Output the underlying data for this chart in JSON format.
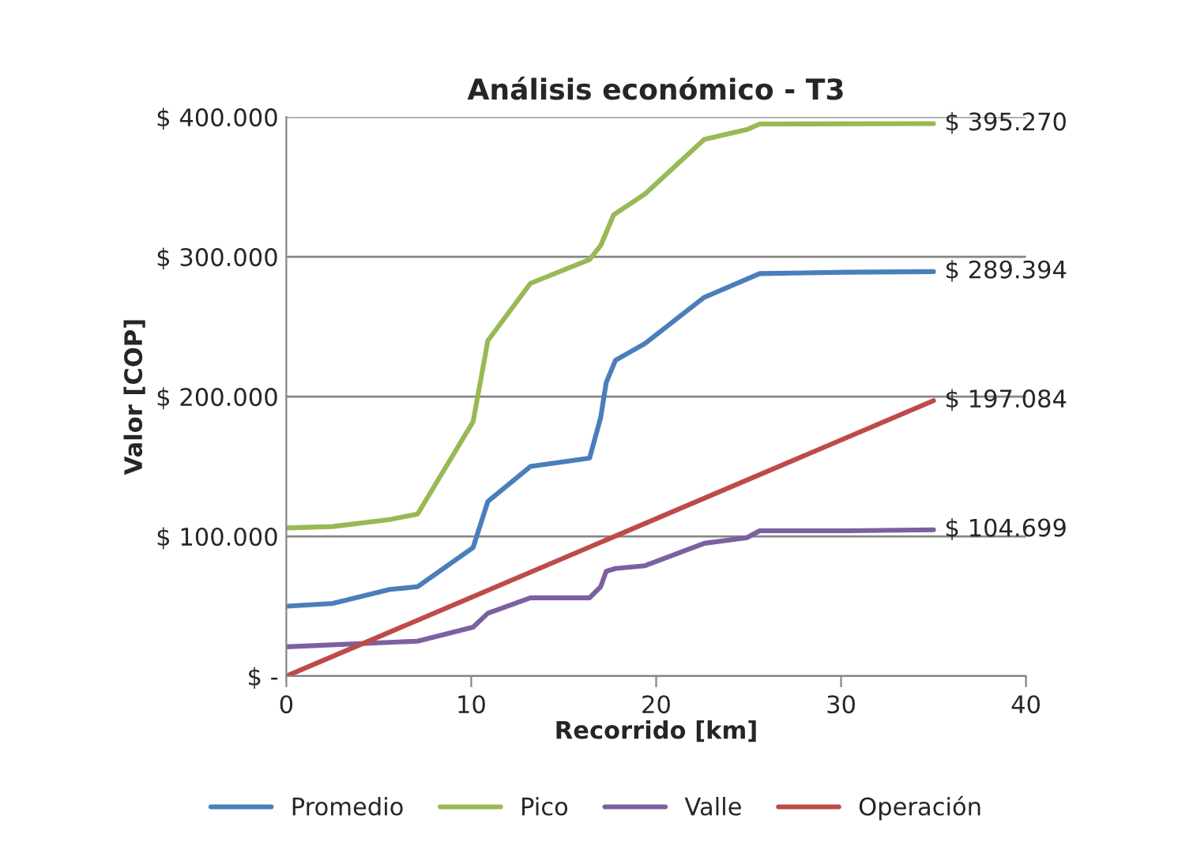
{
  "chart_data": {
    "type": "line",
    "title": "Análisis económico - T3",
    "xlabel": "Recorrido [km]",
    "ylabel": "Valor [COP]",
    "xlim": [
      0,
      40
    ],
    "xticks": [
      0,
      10,
      20,
      30,
      40
    ],
    "ylim": [
      0,
      400000
    ],
    "yticks": [
      {
        "value": 0,
        "label": "$ -"
      },
      {
        "value": 100000,
        "label": "$ 100.000"
      },
      {
        "value": 200000,
        "label": "$ 200.000"
      },
      {
        "value": 300000,
        "label": "$ 300.000"
      },
      {
        "value": 400000,
        "label": "$ 400.000"
      }
    ],
    "grid": "y",
    "legend": "bottom",
    "marker": "none",
    "line_style": "solid",
    "series": [
      {
        "name": "Promedio",
        "color": "#4a7ebb",
        "x": [
          0,
          2.5,
          5.6,
          7.1,
          10.1,
          10.9,
          13.2,
          16.4,
          17.0,
          17.3,
          17.8,
          19.4,
          22.6,
          25.6,
          30.3,
          35
        ],
        "values": [
          50000,
          52000,
          62000,
          64000,
          92000,
          125000,
          150000,
          156000,
          185000,
          210000,
          226000,
          238000,
          271000,
          288000,
          289000,
          289394
        ],
        "value_labels": [
          null,
          null,
          null,
          null,
          null,
          null,
          null,
          null,
          null,
          null,
          null,
          null,
          null,
          null,
          null,
          "$ 289.394"
        ]
      },
      {
        "name": "Pico",
        "color": "#98b954",
        "x": [
          0,
          2.5,
          5.6,
          7.1,
          10.1,
          10.9,
          13.2,
          16.4,
          17.0,
          17.7,
          19.4,
          22.6,
          24.9,
          25.6,
          35
        ],
        "values": [
          106000,
          107000,
          112000,
          116000,
          182000,
          240000,
          281000,
          298000,
          308000,
          330000,
          345000,
          384000,
          391000,
          395000,
          395270
        ],
        "value_labels": [
          null,
          null,
          null,
          null,
          null,
          null,
          null,
          null,
          null,
          null,
          null,
          null,
          null,
          null,
          "$ 395.270"
        ]
      },
      {
        "name": "Valle",
        "color": "#7d60a0",
        "x": [
          0,
          7.1,
          10.1,
          10.9,
          13.2,
          16.4,
          17.0,
          17.3,
          17.8,
          19.4,
          22.6,
          24.9,
          25.6,
          30.3,
          35
        ],
        "values": [
          21000,
          25000,
          35000,
          45000,
          56000,
          56000,
          64000,
          75000,
          77000,
          79000,
          95000,
          99000,
          104000,
          104000,
          104699
        ],
        "value_labels": [
          null,
          null,
          null,
          null,
          null,
          null,
          null,
          null,
          null,
          null,
          null,
          null,
          null,
          null,
          "$ 104.699"
        ]
      },
      {
        "name": "Operación",
        "color": "#be4b48",
        "x": [
          0,
          35
        ],
        "values": [
          0,
          197084
        ],
        "value_labels": [
          null,
          "$ 197.084"
        ]
      }
    ]
  }
}
